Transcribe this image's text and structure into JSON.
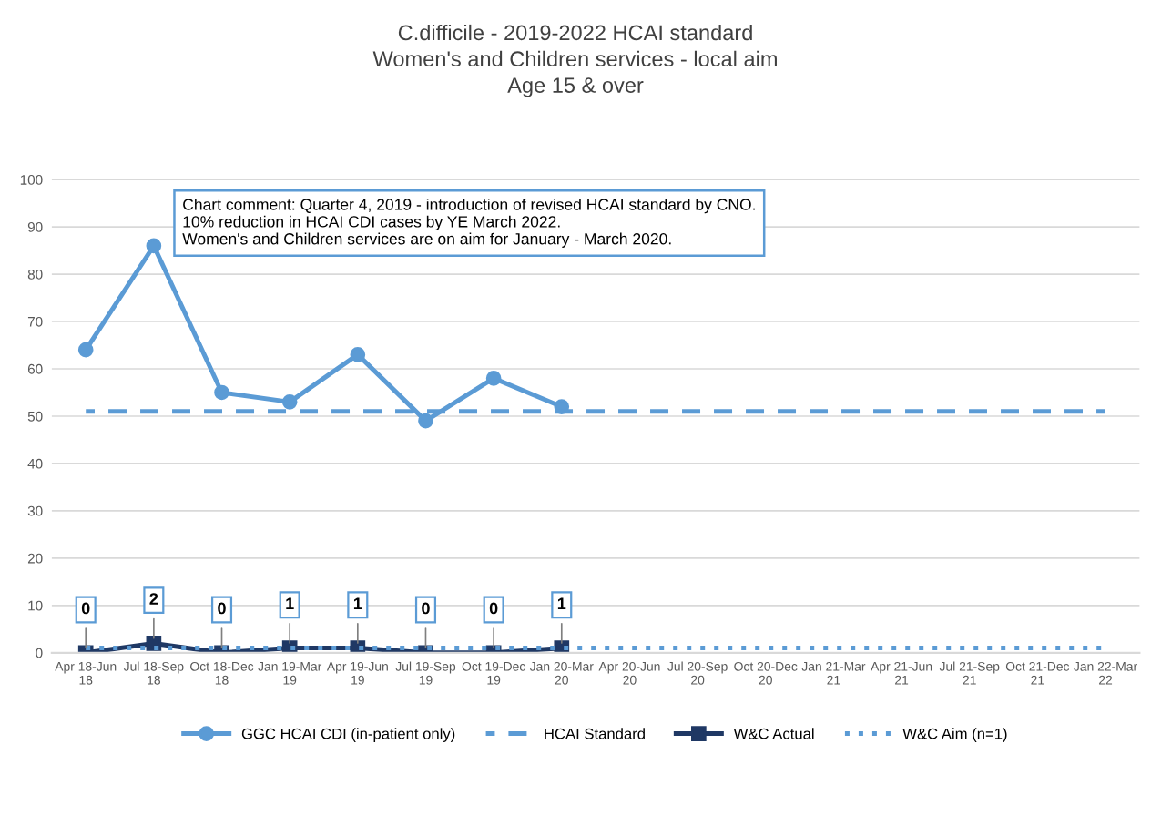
{
  "chart_data": {
    "type": "line",
    "title": "C.difficile - 2019-2022 HCAI standard\nWomen's and Children services - local aim\nAge 15 & over",
    "categories": [
      "Apr 18-Jun\n18",
      "Jul 18-Sep\n18",
      "Oct 18-Dec\n18",
      "Jan 19-Mar\n19",
      "Apr 19-Jun\n19",
      "Jul 19-Sep\n19",
      "Oct 19-Dec\n19",
      "Jan 20-Mar\n20",
      "Apr 20-Jun\n20",
      "Jul 20-Sep\n20",
      "Oct 20-Dec\n20",
      "Jan 21-Mar\n21",
      "Apr 21-Jun\n21",
      "Jul 21-Sep\n21",
      "Oct 21-Dec\n21",
      "Jan 22-Mar\n22"
    ],
    "series": [
      {
        "name": "GGC HCAI CDI (in-patient only)",
        "color": "#5b9bd5",
        "marker": "circle",
        "line_style": "solid",
        "values": [
          64,
          86,
          55,
          53,
          63,
          49,
          58,
          52,
          null,
          null,
          null,
          null,
          null,
          null,
          null,
          null
        ]
      },
      {
        "name": "HCAI Standard",
        "color": "#5b9bd5",
        "marker": "none",
        "line_style": "dashed",
        "values": [
          51,
          51,
          51,
          51,
          51,
          51,
          51,
          51,
          51,
          51,
          51,
          51,
          51,
          51,
          51,
          51
        ]
      },
      {
        "name": "W&C Actual",
        "color": "#1f3864",
        "marker": "square",
        "line_style": "solid",
        "values": [
          0,
          2,
          0,
          1,
          1,
          0,
          0,
          1,
          null,
          null,
          null,
          null,
          null,
          null,
          null,
          null
        ],
        "value_labels": [
          "0",
          "2",
          "0",
          "1",
          "1",
          "0",
          "0",
          "1",
          null,
          null,
          null,
          null,
          null,
          null,
          null,
          null
        ]
      },
      {
        "name": "W&C Aim (n=1)",
        "color": "#5b9bd5",
        "marker": "none",
        "line_style": "dotted",
        "values": [
          1,
          1,
          1,
          1,
          1,
          1,
          1,
          1,
          1,
          1,
          1,
          1,
          1,
          1,
          1,
          1
        ]
      }
    ],
    "ylim": [
      0,
      100
    ],
    "yticks": [
      0,
      10,
      20,
      30,
      40,
      50,
      60,
      70,
      80,
      90,
      100
    ],
    "grid": "y",
    "legend": "bottom",
    "annotations": [
      "Chart comment: Quarter 4, 2019 - introduction of revised HCAI standard by CNO.\n10% reduction in HCAI CDI cases by YE March 2022.\nWomen's and Children services are on aim for January - March 2020."
    ]
  }
}
